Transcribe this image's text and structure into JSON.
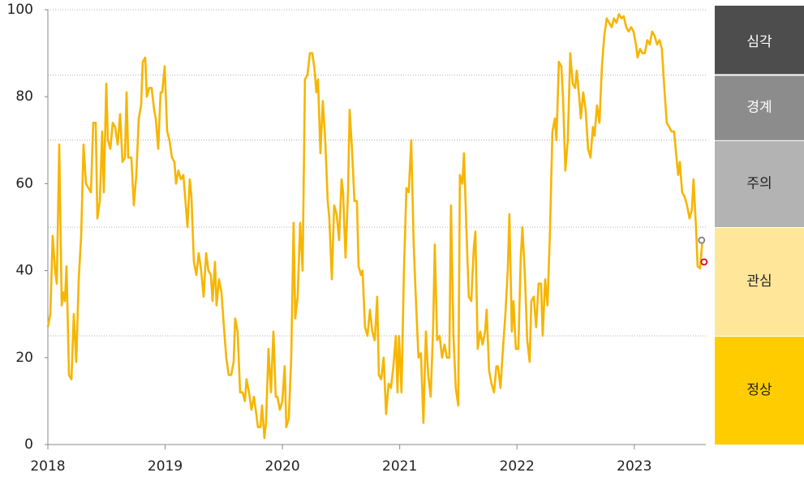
{
  "chart_data": {
    "type": "line",
    "color": "#f7b500",
    "x": [
      2018.0,
      2018.021,
      2018.041,
      2018.062,
      2018.076,
      2018.097,
      2018.118,
      2018.131,
      2018.145,
      2018.159,
      2018.18,
      2018.201,
      2018.221,
      2018.242,
      2018.263,
      2018.284,
      2018.304,
      2018.325,
      2018.346,
      2018.367,
      2018.387,
      2018.408,
      2018.422,
      2018.443,
      2018.463,
      2018.477,
      2018.498,
      2018.512,
      2018.533,
      2018.553,
      2018.574,
      2018.595,
      2018.616,
      2018.636,
      2018.657,
      2018.671,
      2018.685,
      2018.712,
      2018.733,
      2018.754,
      2018.775,
      2018.795,
      2018.809,
      2018.83,
      2018.844,
      2018.864,
      2018.885,
      2018.906,
      2018.92,
      2018.941,
      2018.961,
      2018.975,
      2018.996,
      2019.017,
      2019.037,
      2019.058,
      2019.079,
      2019.093,
      2019.113,
      2019.134,
      2019.155,
      2019.176,
      2019.19,
      2019.21,
      2019.224,
      2019.245,
      2019.266,
      2019.286,
      2019.307,
      2019.328,
      2019.349,
      2019.369,
      2019.39,
      2019.404,
      2019.425,
      2019.438,
      2019.459,
      2019.48,
      2019.501,
      2019.521,
      2019.542,
      2019.563,
      2019.584,
      2019.597,
      2019.618,
      2019.639,
      2019.66,
      2019.68,
      2019.694,
      2019.715,
      2019.736,
      2019.757,
      2019.777,
      2019.791,
      2019.812,
      2019.826,
      2019.846,
      2019.86,
      2019.881,
      2019.902,
      2019.923,
      2019.943,
      2019.957,
      2019.978,
      2019.999,
      2020.019,
      2020.033,
      2020.054,
      2020.075,
      2020.095,
      2020.109,
      2020.13,
      2020.151,
      2020.172,
      2020.192,
      2020.213,
      2020.234,
      2020.255,
      2020.275,
      2020.289,
      2020.303,
      2020.324,
      2020.344,
      2020.365,
      2020.386,
      2020.4,
      2020.421,
      2020.441,
      2020.462,
      2020.483,
      2020.504,
      2020.517,
      2020.538,
      2020.559,
      2020.573,
      2020.593,
      2020.614,
      2020.635,
      2020.649,
      2020.67,
      2020.683,
      2020.704,
      2020.725,
      2020.746,
      2020.766,
      2020.787,
      2020.808,
      2020.822,
      2020.842,
      2020.863,
      2020.884,
      2020.905,
      2020.925,
      2020.946,
      2020.967,
      2020.981,
      2020.994,
      2021.015,
      2021.036,
      2021.057,
      2021.077,
      2021.098,
      2021.119,
      2021.14,
      2021.16,
      2021.181,
      2021.202,
      2021.223,
      2021.243,
      2021.264,
      2021.285,
      2021.299,
      2021.319,
      2021.34,
      2021.361,
      2021.382,
      2021.402,
      2021.423,
      2021.437,
      2021.458,
      2021.478,
      2021.499,
      2021.513,
      2021.534,
      2021.548,
      2021.568,
      2021.589,
      2021.61,
      2021.631,
      2021.645,
      2021.665,
      2021.686,
      2021.707,
      2021.728,
      2021.741,
      2021.762,
      2021.783,
      2021.804,
      2021.824,
      2021.838,
      2021.859,
      2021.88,
      2021.901,
      2021.921,
      2021.935,
      2021.956,
      2021.97,
      2021.99,
      2022.011,
      2022.032,
      2022.046,
      2022.067,
      2022.087,
      2022.108,
      2022.122,
      2022.143,
      2022.163,
      2022.184,
      2022.205,
      2022.219,
      2022.24,
      2022.26,
      2022.281,
      2022.302,
      2022.323,
      2022.336,
      2022.357,
      2022.378,
      2022.392,
      2022.412,
      2022.433,
      2022.454,
      2022.475,
      2022.495,
      2022.509,
      2022.53,
      2022.544,
      2022.564,
      2022.585,
      2022.606,
      2022.627,
      2022.647,
      2022.661,
      2022.682,
      2022.703,
      2022.724,
      2022.744,
      2022.765,
      2022.786,
      2022.807,
      2022.827,
      2022.848,
      2022.869,
      2022.89,
      2022.91,
      2022.931,
      2022.952,
      2022.973,
      2022.993,
      2023.014,
      2023.028,
      2023.049,
      2023.069,
      2023.09,
      2023.111,
      2023.132,
      2023.152,
      2023.173,
      2023.194,
      2023.215,
      2023.235,
      2023.256,
      2023.277,
      2023.298,
      2023.318,
      2023.339,
      2023.36,
      2023.374,
      2023.388,
      2023.408,
      2023.429,
      2023.45,
      2023.471,
      2023.491,
      2023.505,
      2023.526,
      2023.54,
      2023.561,
      2023.581
    ],
    "values": [
      27,
      30,
      48,
      40,
      37,
      69,
      32,
      35,
      33,
      41,
      16,
      15,
      30,
      19,
      38,
      48,
      69,
      60,
      59,
      58,
      74,
      74,
      52,
      56,
      72,
      58,
      83,
      70,
      68,
      74,
      73,
      69,
      76,
      65,
      66,
      81,
      66,
      66,
      55,
      62,
      75,
      78,
      88,
      89,
      80,
      82,
      82,
      77,
      75,
      68,
      81,
      81,
      87,
      72,
      70,
      66,
      65,
      60,
      63,
      61,
      62,
      55,
      50,
      61,
      57,
      42,
      39,
      44,
      40,
      34,
      44,
      40,
      39,
      33,
      42,
      32,
      38,
      35,
      27,
      20,
      16,
      16,
      19,
      29,
      26,
      12,
      12,
      10,
      15,
      12,
      8,
      11,
      7,
      4,
      4,
      9,
      1.5,
      5,
      22,
      12,
      26,
      11,
      11,
      8,
      10,
      18,
      4,
      6,
      20,
      51,
      29,
      34,
      51,
      40,
      84,
      85,
      90,
      90,
      86,
      81,
      84,
      67,
      79,
      70,
      56,
      52,
      38,
      55,
      53,
      47,
      61,
      58,
      43,
      58,
      77,
      68,
      56,
      56,
      41,
      39,
      40,
      27,
      25,
      31,
      26,
      24,
      34,
      16,
      15,
      20,
      7,
      14,
      13,
      18,
      25,
      12,
      25,
      12,
      40,
      59,
      58,
      70,
      46,
      32,
      20,
      21,
      5,
      26,
      16,
      11,
      27,
      46,
      24,
      25,
      20,
      23,
      20,
      20,
      55,
      25,
      13,
      9,
      62,
      60,
      67,
      50,
      34,
      33,
      45,
      49,
      22,
      26,
      23,
      26,
      31,
      17,
      14,
      12,
      18,
      18,
      13,
      22,
      30,
      40,
      53,
      26,
      33,
      22,
      22,
      43,
      50,
      39,
      24,
      19,
      33,
      34,
      27,
      37,
      37,
      25,
      38,
      32,
      49,
      72,
      75,
      70,
      88,
      87,
      80,
      63,
      70,
      90,
      83,
      82,
      86,
      80,
      75,
      81,
      77,
      68,
      66,
      73,
      71,
      78,
      74,
      87,
      94,
      98,
      97,
      96,
      98,
      97,
      99,
      98,
      98.5,
      96,
      95,
      96,
      95,
      92,
      89,
      91,
      90,
      90,
      93,
      92,
      95,
      94,
      92,
      93,
      91,
      82,
      74,
      73,
      72,
      72,
      66,
      62,
      65,
      58,
      57,
      55,
      52,
      54,
      61,
      50,
      41,
      40.5,
      47
    ],
    "markers": [
      {
        "x": 2023.574,
        "value": 47,
        "color": "#808080"
      },
      {
        "x": 2023.595,
        "value": 42,
        "color": "#e60012"
      }
    ],
    "xlim": [
      2018,
      2023.61
    ],
    "xticks": [
      2018,
      2019,
      2020,
      2021,
      2022,
      2023
    ],
    "ylim": [
      0,
      100
    ],
    "yticks": [
      0,
      20,
      40,
      60,
      80,
      100
    ],
    "bands": [
      {
        "label": "심각",
        "from": 85,
        "to": 100,
        "color": "#4d4d4d",
        "text_color": "#ffffff"
      },
      {
        "label": "경계",
        "from": 70,
        "to": 85,
        "color": "#8c8c8c",
        "text_color": "#ffffff"
      },
      {
        "label": "주의",
        "from": 50,
        "to": 70,
        "color": "#b3b3b3",
        "text_color": "#222222"
      },
      {
        "label": "관심",
        "from": 25,
        "to": 50,
        "color": "#ffe699",
        "text_color": "#222222"
      },
      {
        "label": "정상",
        "from": 0,
        "to": 25,
        "color": "#ffcc00",
        "text_color": "#222222"
      }
    ]
  }
}
